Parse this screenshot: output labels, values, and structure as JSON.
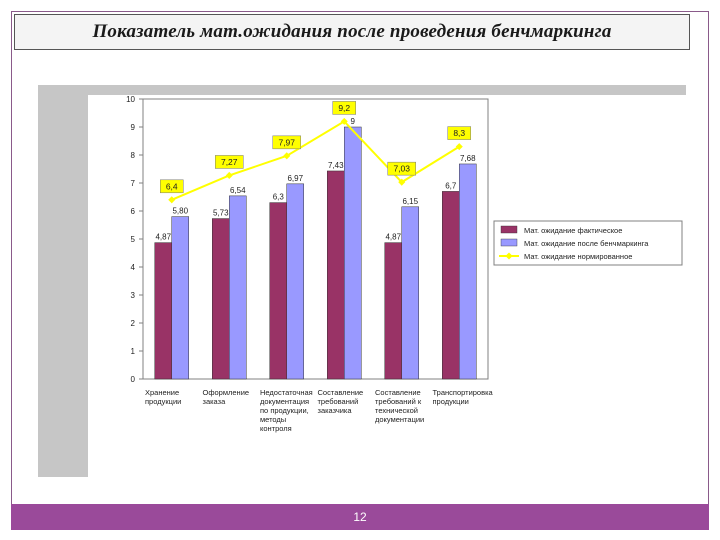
{
  "slide": {
    "title": "Показатель мат.ожидания после проведения бенчмаркинга",
    "page_number": "12"
  },
  "colors": {
    "fact": "#993366",
    "after": "#9999ff",
    "norm": "#ffff00",
    "panel": "#c6c6c6",
    "footer": "#9a4a9a"
  },
  "chart_data": {
    "type": "bar",
    "ylim": [
      0,
      10
    ],
    "yticks": [
      "0",
      "1",
      "2",
      "3",
      "4",
      "5",
      "6",
      "7",
      "8",
      "9",
      "10"
    ],
    "grid": false,
    "legend_position": "right",
    "categories": [
      "Хранение продукции",
      "Оформление заказа",
      "Недостаточная документация по продукции, методы контроля",
      "Составление требований заказчика",
      "Составление требований к технической документации",
      "Транспортировка продукции"
    ],
    "series": [
      {
        "name": "Мат. ожидание фактическое",
        "kind": "bar",
        "values": [
          4.87,
          5.73,
          6.3,
          7.43,
          4.87,
          6.7
        ],
        "labels": [
          "4,87",
          "5,73",
          "6,3",
          "7,43",
          "4,87",
          "6,7"
        ]
      },
      {
        "name": "Мат. ожидание после бенчмаркинга",
        "kind": "bar",
        "values": [
          5.8,
          6.54,
          6.97,
          9,
          6.15,
          7.68
        ],
        "labels": [
          "5,80",
          "6,54",
          "6,97",
          "9",
          "6,15",
          "7,68"
        ]
      },
      {
        "name": "Мат. ожидание нормированное",
        "kind": "line",
        "values": [
          6.4,
          7.27,
          7.97,
          9.2,
          7.03,
          8.3
        ],
        "labels": [
          "6,4",
          "7,27",
          "7,97",
          "9,2",
          "7,03",
          "8,3"
        ]
      }
    ]
  }
}
